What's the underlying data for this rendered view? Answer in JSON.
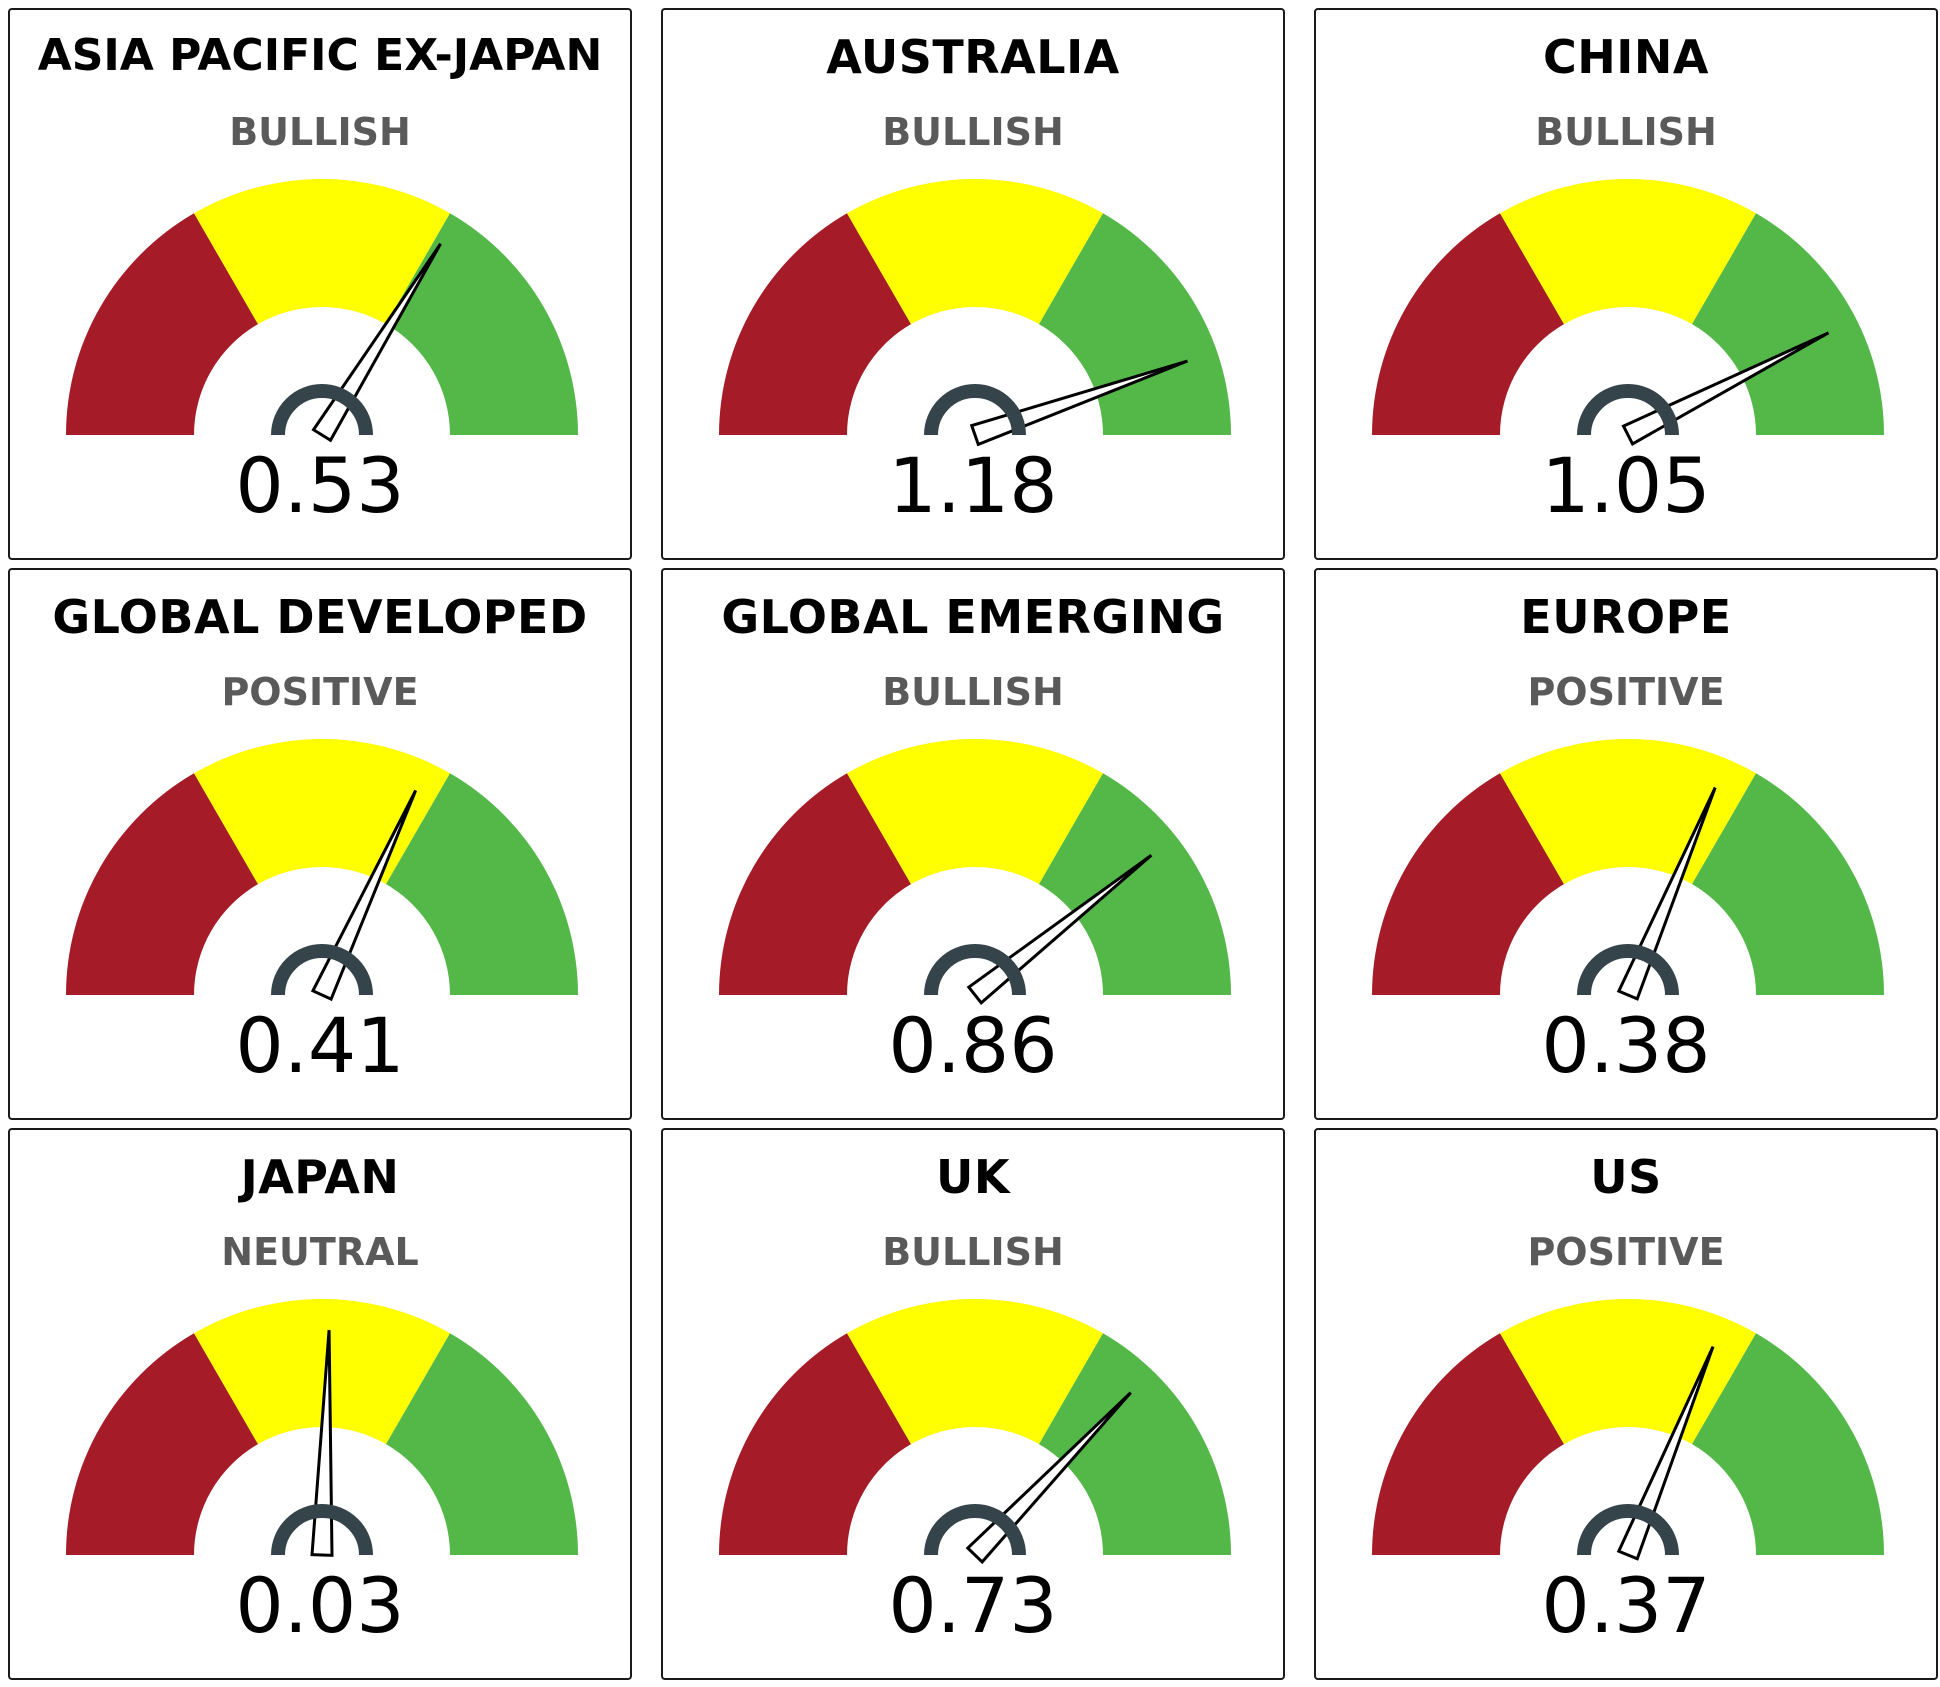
{
  "chart_data": {
    "type": "gauge",
    "scale_colors": {
      "left_band": "#a51b27",
      "middle_band": "#ffff00",
      "right_band": "#54b848"
    },
    "gauges": [
      {
        "title": "ASIA PACIFIC EX-JAPAN",
        "status": "BULLISH",
        "value": 0.53
      },
      {
        "title": "AUSTRALIA",
        "status": "BULLISH",
        "value": 1.18
      },
      {
        "title": "CHINA",
        "status": "BULLISH",
        "value": 1.05
      },
      {
        "title": "GLOBAL DEVELOPED",
        "status": "POSITIVE",
        "value": 0.41
      },
      {
        "title": "GLOBAL EMERGING",
        "status": "BULLISH",
        "value": 0.86
      },
      {
        "title": "EUROPE",
        "status": "POSITIVE",
        "value": 0.38
      },
      {
        "title": "JAPAN",
        "status": "NEUTRAL",
        "value": 0.03
      },
      {
        "title": "UK",
        "status": "BULLISH",
        "value": 0.73
      },
      {
        "title": "US",
        "status": "POSITIVE",
        "value": 0.37
      }
    ]
  }
}
